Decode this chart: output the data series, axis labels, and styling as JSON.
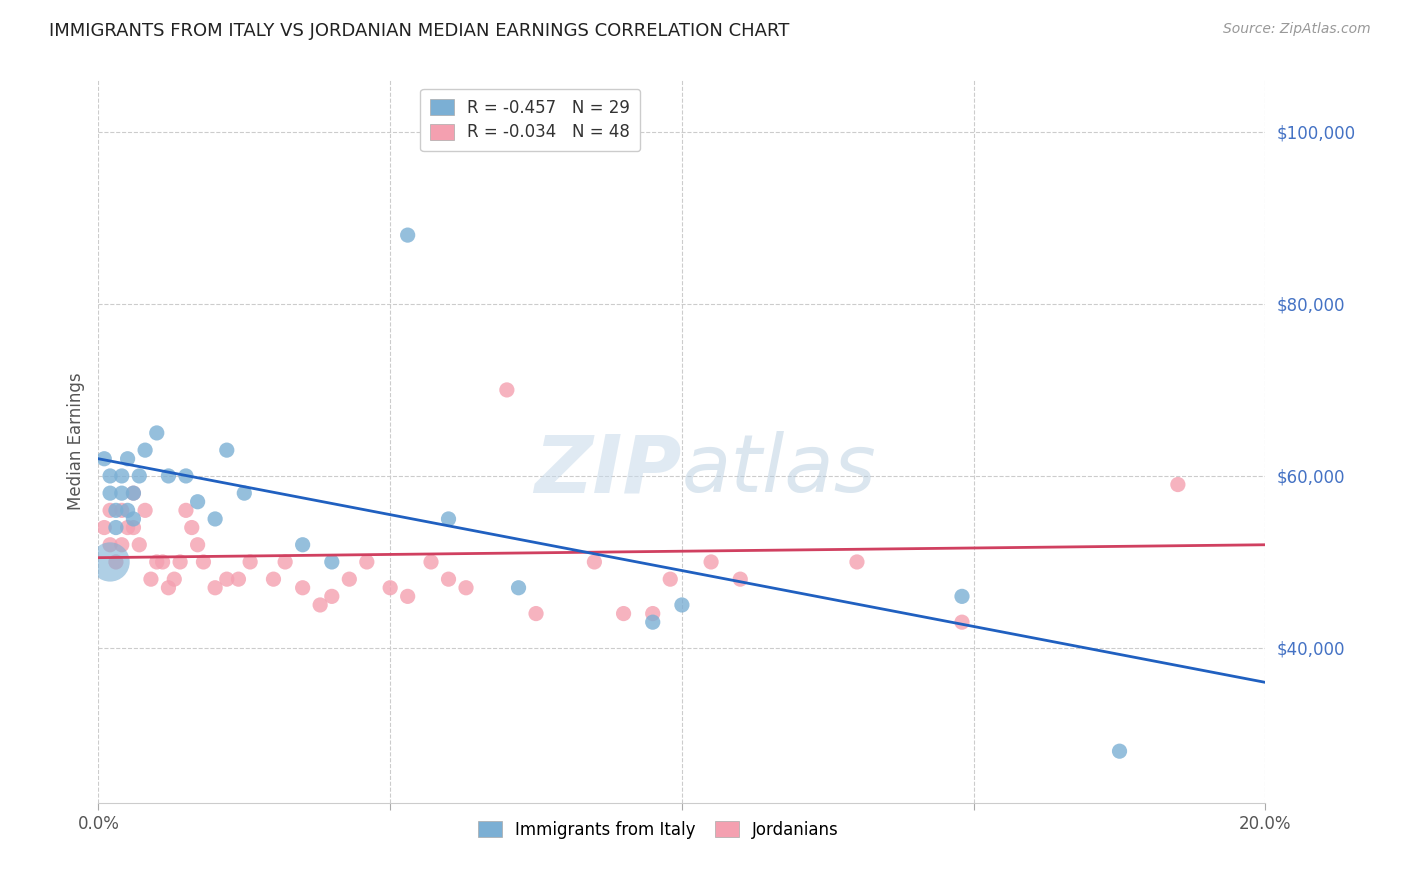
{
  "title": "IMMIGRANTS FROM ITALY VS JORDANIAN MEDIAN EARNINGS CORRELATION CHART",
  "source": "Source: ZipAtlas.com",
  "ylabel": "Median Earnings",
  "x_min": 0.0,
  "x_max": 0.2,
  "y_min": 22000,
  "y_max": 106000,
  "yticks": [
    40000,
    60000,
    80000,
    100000
  ],
  "ytick_labels": [
    "$40,000",
    "$60,000",
    "$80,000",
    "$100,000"
  ],
  "xticks": [
    0.0,
    0.05,
    0.1,
    0.15,
    0.2
  ],
  "xtick_labels": [
    "0.0%",
    "",
    "",
    "",
    "20.0%"
  ],
  "legend_label1": "Immigrants from Italy",
  "legend_label2": "Jordanians",
  "R1": -0.457,
  "N1": 29,
  "R2": -0.034,
  "N2": 48,
  "color_italy": "#7bafd4",
  "color_jordan": "#f4a0b0",
  "trendline_italy_color": "#2060c0",
  "trendline_jordan_color": "#d04060",
  "background_color": "#ffffff",
  "watermark_zip": "ZIP",
  "watermark_atlas": "atlas",
  "italy_x": [
    0.001,
    0.002,
    0.002,
    0.003,
    0.003,
    0.004,
    0.004,
    0.005,
    0.005,
    0.006,
    0.006,
    0.007,
    0.008,
    0.01,
    0.012,
    0.015,
    0.017,
    0.02,
    0.022,
    0.025,
    0.035,
    0.04,
    0.053,
    0.06,
    0.072,
    0.095,
    0.1,
    0.148,
    0.175
  ],
  "italy_y": [
    62000,
    60000,
    58000,
    54000,
    56000,
    58000,
    60000,
    56000,
    62000,
    58000,
    55000,
    60000,
    63000,
    65000,
    60000,
    60000,
    57000,
    55000,
    63000,
    58000,
    52000,
    50000,
    88000,
    55000,
    47000,
    43000,
    45000,
    46000,
    28000
  ],
  "italy_size": [
    20,
    20,
    20,
    20,
    20,
    20,
    20,
    20,
    20,
    20,
    20,
    20,
    20,
    20,
    20,
    20,
    20,
    20,
    20,
    20,
    20,
    20,
    20,
    20,
    20,
    20,
    20,
    20,
    20
  ],
  "italy_size_large": [
    1,
    9
  ],
  "jordan_x": [
    0.001,
    0.002,
    0.002,
    0.003,
    0.004,
    0.004,
    0.005,
    0.006,
    0.006,
    0.007,
    0.008,
    0.009,
    0.01,
    0.011,
    0.012,
    0.013,
    0.014,
    0.015,
    0.016,
    0.017,
    0.018,
    0.02,
    0.022,
    0.024,
    0.026,
    0.03,
    0.032,
    0.035,
    0.038,
    0.04,
    0.043,
    0.046,
    0.05,
    0.053,
    0.057,
    0.06,
    0.063,
    0.07,
    0.075,
    0.085,
    0.09,
    0.095,
    0.098,
    0.105,
    0.11,
    0.13,
    0.148,
    0.185
  ],
  "jordan_y": [
    54000,
    56000,
    52000,
    50000,
    56000,
    52000,
    54000,
    58000,
    54000,
    52000,
    56000,
    48000,
    50000,
    50000,
    47000,
    48000,
    50000,
    56000,
    54000,
    52000,
    50000,
    47000,
    48000,
    48000,
    50000,
    48000,
    50000,
    47000,
    45000,
    46000,
    48000,
    50000,
    47000,
    46000,
    50000,
    48000,
    47000,
    70000,
    44000,
    50000,
    44000,
    44000,
    48000,
    50000,
    48000,
    50000,
    43000,
    59000
  ],
  "jordan_size": [
    20,
    20,
    20,
    20,
    20,
    20,
    20,
    20,
    20,
    20,
    20,
    20,
    20,
    20,
    20,
    20,
    20,
    20,
    20,
    20,
    20,
    20,
    20,
    20,
    20,
    20,
    20,
    20,
    20,
    20,
    20,
    20,
    20,
    20,
    20,
    20,
    20,
    20,
    20,
    20,
    20,
    20,
    20,
    20,
    20,
    20,
    20,
    20
  ],
  "italy_trendline_x": [
    0.0,
    0.2
  ],
  "italy_trendline_y": [
    62000,
    36000
  ],
  "jordan_trendline_x": [
    0.0,
    0.2
  ],
  "jordan_trendline_y": [
    50500,
    52000
  ]
}
